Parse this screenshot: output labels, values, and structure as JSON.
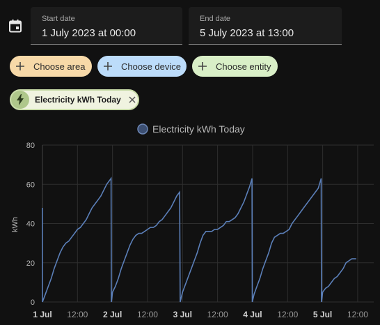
{
  "date_picker": {
    "icon": "calendar-icon",
    "start": {
      "label": "Start date",
      "value": "1 July 2023 at 00:00"
    },
    "end": {
      "label": "End date",
      "value": "5 July 2023 at 13:00"
    }
  },
  "target_chips": [
    {
      "label": "Choose area",
      "color": "#f7d9a8"
    },
    {
      "label": "Choose device",
      "color": "#bcdcfa"
    },
    {
      "label": "Choose entity",
      "color": "#d9efc7"
    }
  ],
  "selected_entity": {
    "label": "Electricity kWh Today",
    "icon": "lightning-bolt-icon"
  },
  "chart_data": {
    "type": "line",
    "legend": "Electricity kWh Today",
    "ylabel": "kWh",
    "ylim": [
      0,
      80
    ],
    "yticks": [
      0,
      20,
      40,
      60,
      80
    ],
    "xlim": [
      0,
      113.5
    ],
    "xticks": [
      {
        "hour": 0,
        "label": "1 Jul",
        "bold": true
      },
      {
        "hour": 12,
        "label": "12:00",
        "bold": false
      },
      {
        "hour": 24,
        "label": "2 Jul",
        "bold": true
      },
      {
        "hour": 36,
        "label": "12:00",
        "bold": false
      },
      {
        "hour": 48,
        "label": "3 Jul",
        "bold": true
      },
      {
        "hour": 60,
        "label": "12:00",
        "bold": false
      },
      {
        "hour": 72,
        "label": "4 Jul",
        "bold": true
      },
      {
        "hour": 84,
        "label": "12:00",
        "bold": false
      },
      {
        "hour": 96,
        "label": "5 Jul",
        "bold": true
      },
      {
        "hour": 108,
        "label": "12:00",
        "bold": false
      }
    ],
    "grid": true,
    "color": "#5b7fb8",
    "series": [
      {
        "points": [
          [
            0,
            48
          ],
          [
            0,
            0
          ],
          [
            1,
            4
          ],
          [
            2,
            8
          ],
          [
            3,
            12
          ],
          [
            4,
            17
          ],
          [
            5,
            21
          ],
          [
            6,
            25
          ],
          [
            7,
            28
          ],
          [
            8,
            30
          ],
          [
            9,
            31
          ],
          [
            10,
            33
          ],
          [
            11,
            35
          ],
          [
            12,
            37
          ],
          [
            13,
            38
          ],
          [
            14,
            40
          ],
          [
            15,
            42
          ],
          [
            16,
            45
          ],
          [
            17,
            48
          ],
          [
            18,
            50
          ],
          [
            19,
            52
          ],
          [
            20,
            54
          ],
          [
            21,
            57
          ],
          [
            22,
            60
          ],
          [
            23.5,
            63
          ],
          [
            23.6,
            0
          ],
          [
            24,
            5
          ],
          [
            25,
            8
          ],
          [
            26,
            12
          ],
          [
            27,
            17
          ],
          [
            28,
            21
          ],
          [
            29,
            25
          ],
          [
            30,
            29
          ],
          [
            31,
            32
          ],
          [
            32,
            34
          ],
          [
            33,
            35
          ],
          [
            34,
            35
          ],
          [
            35,
            36
          ],
          [
            36,
            37
          ],
          [
            37,
            38
          ],
          [
            38,
            38
          ],
          [
            39,
            39
          ],
          [
            40,
            41
          ],
          [
            41,
            42
          ],
          [
            42,
            44
          ],
          [
            43,
            46
          ],
          [
            44,
            48
          ],
          [
            45,
            51
          ],
          [
            46,
            54
          ],
          [
            47,
            56
          ],
          [
            47.2,
            0
          ],
          [
            48,
            5
          ],
          [
            49,
            9
          ],
          [
            50,
            13
          ],
          [
            51,
            17
          ],
          [
            52,
            21
          ],
          [
            53,
            25
          ],
          [
            54,
            30
          ],
          [
            55,
            34
          ],
          [
            56,
            36
          ],
          [
            57,
            36
          ],
          [
            58,
            36
          ],
          [
            59,
            37
          ],
          [
            60,
            37
          ],
          [
            61,
            38
          ],
          [
            62,
            39
          ],
          [
            63,
            41
          ],
          [
            64,
            41
          ],
          [
            65,
            42
          ],
          [
            66,
            43
          ],
          [
            67,
            45
          ],
          [
            68,
            48
          ],
          [
            69,
            51
          ],
          [
            70,
            55
          ],
          [
            71,
            59
          ],
          [
            71.8,
            63
          ],
          [
            71.9,
            0
          ],
          [
            72.5,
            4
          ],
          [
            73.5,
            8
          ],
          [
            74.5,
            12
          ],
          [
            75.5,
            17
          ],
          [
            76.5,
            21
          ],
          [
            77.5,
            25
          ],
          [
            78.5,
            30
          ],
          [
            79.5,
            33
          ],
          [
            80.5,
            34
          ],
          [
            81.5,
            35
          ],
          [
            82.5,
            35
          ],
          [
            83.5,
            36
          ],
          [
            84.5,
            37
          ],
          [
            85.5,
            40
          ],
          [
            86.5,
            42
          ],
          [
            87.5,
            44
          ],
          [
            88.5,
            46
          ],
          [
            89.5,
            48
          ],
          [
            90.5,
            50
          ],
          [
            91.5,
            52
          ],
          [
            92.5,
            54
          ],
          [
            93.5,
            56
          ],
          [
            94.5,
            58
          ],
          [
            95.5,
            63
          ],
          [
            95.6,
            0
          ],
          [
            96,
            5
          ],
          [
            97,
            7
          ],
          [
            98,
            8
          ],
          [
            99,
            10
          ],
          [
            100,
            12
          ],
          [
            101,
            13
          ],
          [
            102,
            15
          ],
          [
            103,
            17
          ],
          [
            104,
            20
          ],
          [
            105,
            21
          ],
          [
            106,
            22
          ],
          [
            107.5,
            22
          ]
        ]
      }
    ]
  }
}
